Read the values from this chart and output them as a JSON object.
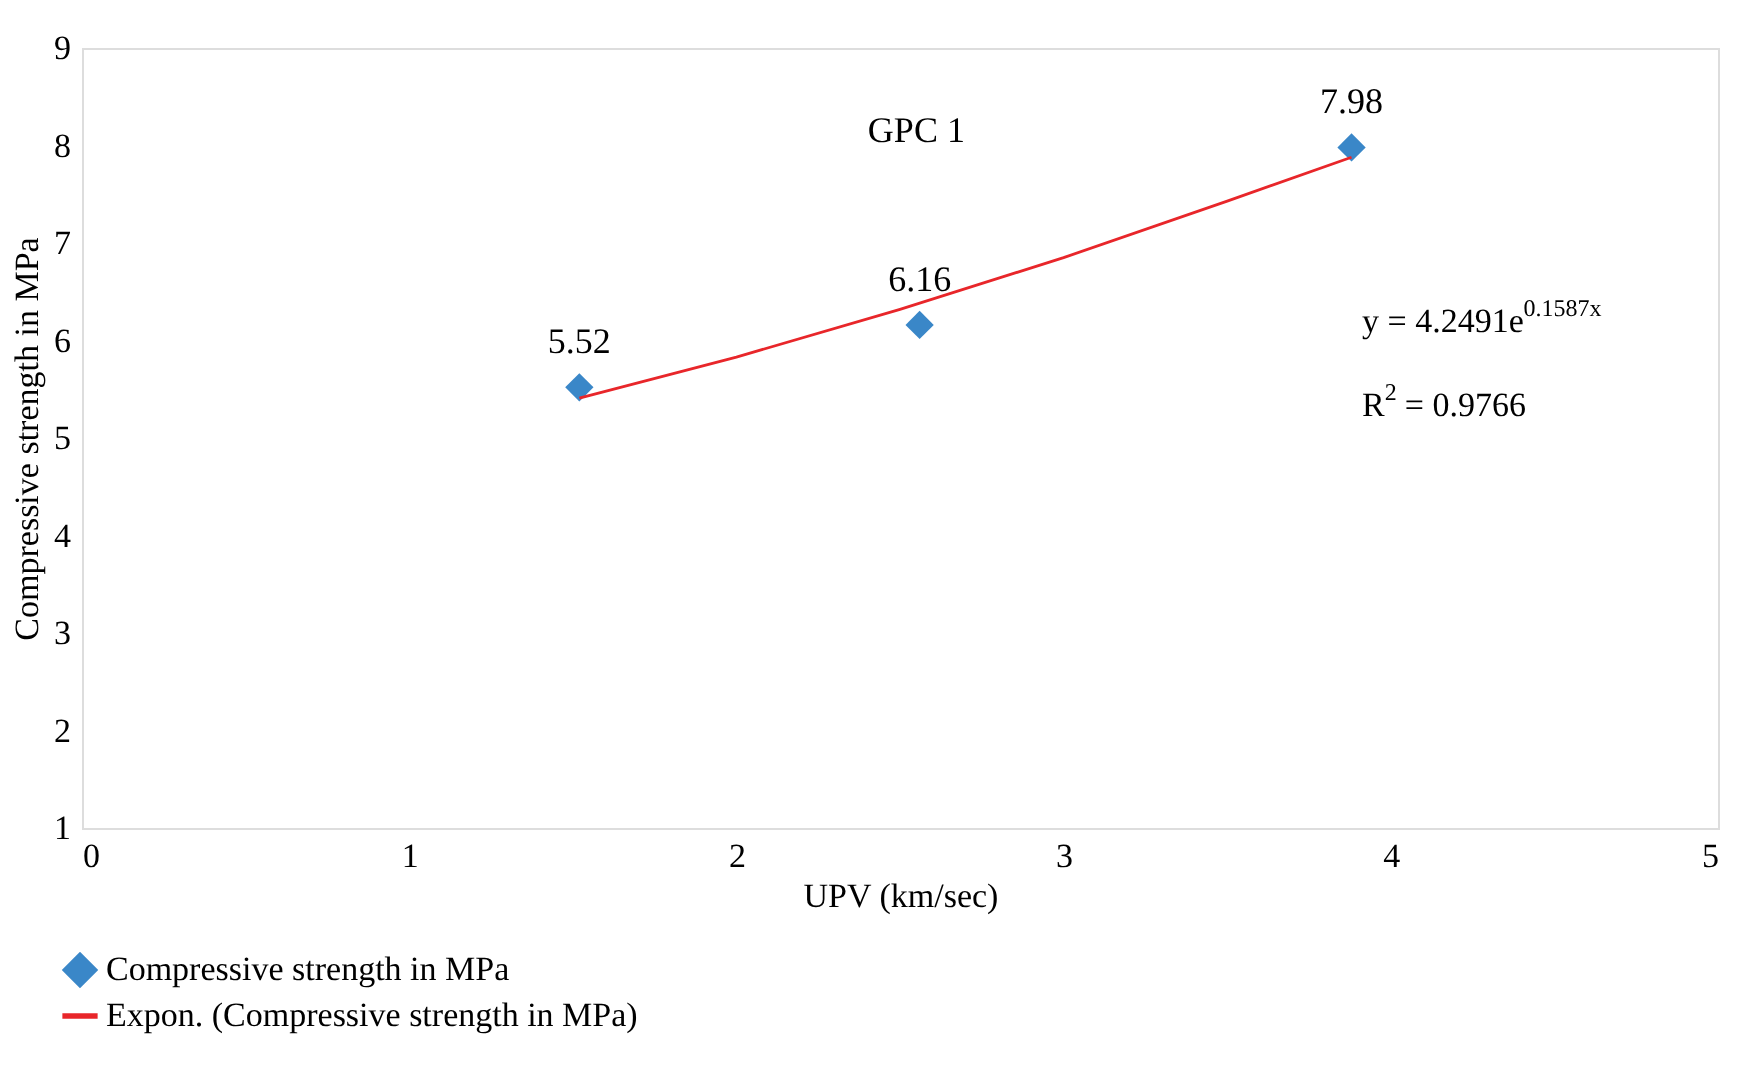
{
  "chart_data": {
    "type": "scatter",
    "title": "GPC 1",
    "xlabel": "UPV (km/sec)",
    "ylabel": "Compressive strength in MPa",
    "xlim": [
      0,
      5
    ],
    "xticks": [
      0,
      1,
      2,
      3,
      4,
      5
    ],
    "ylim": [
      1,
      9
    ],
    "yticks": [
      1,
      2,
      3,
      4,
      5,
      6,
      7,
      8,
      9
    ],
    "grid": false,
    "legend": "bottom",
    "series": [
      {
        "name": "Compressive strength in MPa",
        "color": "#3a87c8",
        "marker": "diamond",
        "data_labels": true,
        "x": [
          1.52,
          2.56,
          3.88
        ],
        "values": [
          5.52,
          6.16,
          7.98
        ]
      },
      {
        "name": "Expon. (Compressive strength in MPa)",
        "type": "line",
        "color": "#e8262a",
        "line_style": "solid",
        "marker": "none",
        "x": [
          1.52,
          2.0,
          2.5,
          3.0,
          3.5,
          3.88
        ],
        "values": [
          5.41,
          5.83,
          6.32,
          6.85,
          7.43,
          7.88
        ]
      }
    ],
    "annotations": [
      "y = 4.2491e$^{0.1587x}$",
      "R$^{2}$ = 0.9766"
    ]
  }
}
